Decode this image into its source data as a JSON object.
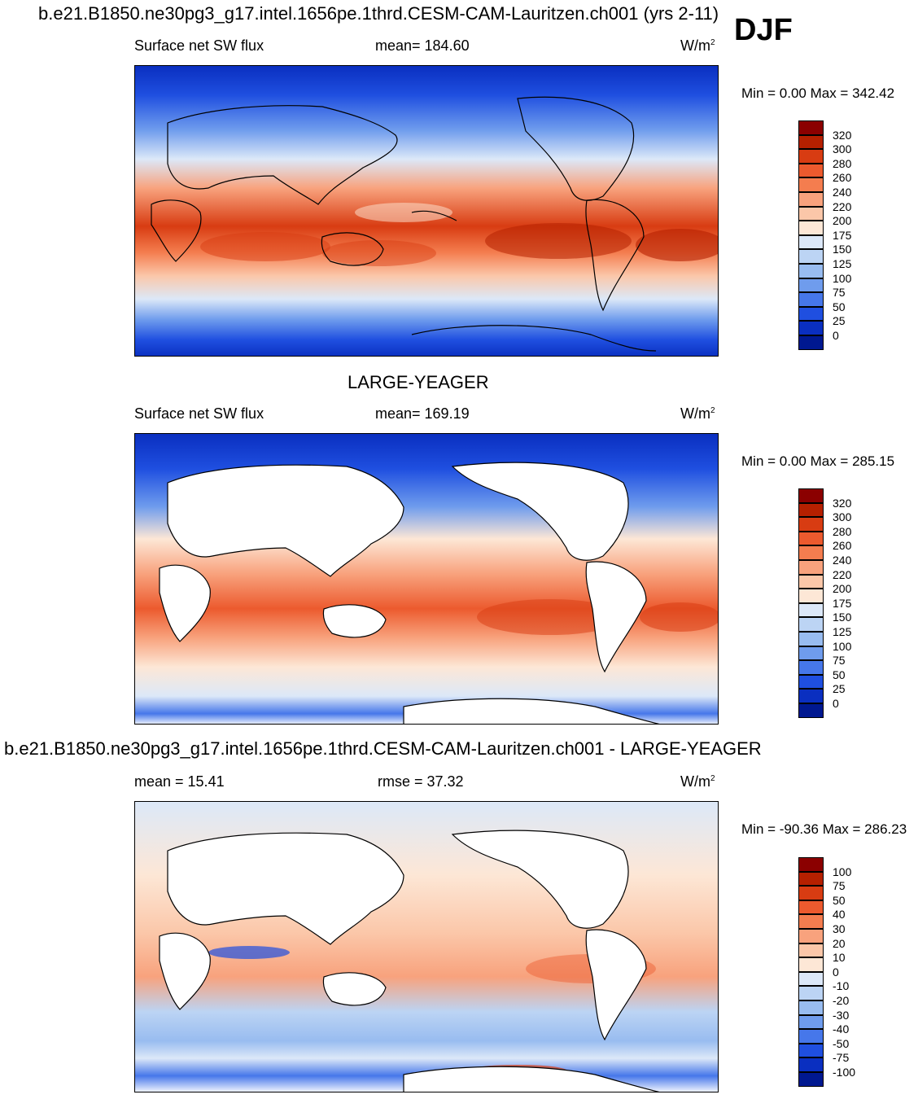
{
  "header": {
    "title": "b.e21.B1850.ne30pg3_g17.intel.1656pe.1thrd.CESM-CAM-Lauritzen.ch001 (yrs 2-11)",
    "season": "DJF"
  },
  "panel1": {
    "variable": "Surface net SW flux",
    "stat": "mean= 184.60",
    "units": "W/m",
    "units_sup": "2",
    "minmax": "Min =   0.00 Max = 342.42"
  },
  "panel2": {
    "title": "LARGE-YEAGER",
    "variable": "Surface net SW flux",
    "stat": "mean= 169.19",
    "units": "W/m",
    "units_sup": "2",
    "minmax": "Min =   0.00 Max = 285.15"
  },
  "panel3": {
    "title": "b.e21.B1850.ne30pg3_g17.intel.1656pe.1thrd.CESM-CAM-Lauritzen.ch001 - LARGE-YEAGER",
    "stat_left": "mean =  15.41",
    "stat_mid": "rmse =  37.32",
    "units": "W/m",
    "units_sup": "2",
    "minmax": "Min = -90.36 Max = 286.23"
  },
  "colorbar_abs": {
    "labels": [
      "320",
      "300",
      "280",
      "260",
      "240",
      "220",
      "200",
      "175",
      "150",
      "125",
      "100",
      "75",
      "50",
      "25",
      "0"
    ],
    "colors": [
      "#8b0000",
      "#b52000",
      "#d83c12",
      "#ec5a2e",
      "#f47d4f",
      "#f8a27d",
      "#fbc7a9",
      "#fde7d6",
      "#dce8f8",
      "#bcd4f4",
      "#98bcf0",
      "#6f9ced",
      "#4677ea",
      "#1f4fe0",
      "#0a2fc0",
      "#001890"
    ]
  },
  "colorbar_diff": {
    "labels": [
      "100",
      "75",
      "50",
      "40",
      "30",
      "20",
      "10",
      "0",
      "-10",
      "-20",
      "-30",
      "-40",
      "-50",
      "-75",
      "-100"
    ],
    "colors": [
      "#8b0000",
      "#b52000",
      "#d83c12",
      "#ec5a2e",
      "#f47d4f",
      "#f8a27d",
      "#fbc7a9",
      "#fde7d6",
      "#dce8f8",
      "#bcd4f4",
      "#98bcf0",
      "#6f9ced",
      "#4677ea",
      "#1f4fe0",
      "#0a2fc0",
      "#001890"
    ]
  }
}
